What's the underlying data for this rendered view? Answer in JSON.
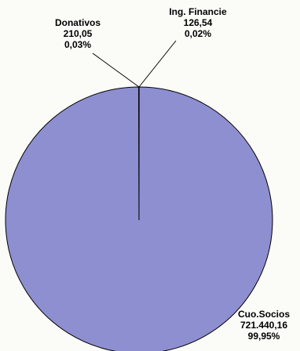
{
  "chart_data": {
    "type": "pie",
    "slices": [
      {
        "label": "Donativos",
        "value_text": "210,05",
        "percent_text": "0,03%",
        "value": 210.05,
        "percent": 0.03
      },
      {
        "label": "Ing. Financie",
        "value_text": "126,54",
        "percent_text": "0,02%",
        "value": 126.54,
        "percent": 0.02
      },
      {
        "label": "Cuo.Socios",
        "value_text": "721.440,16",
        "percent_text": "99,95%",
        "value": 721440.16,
        "percent": 99.95
      }
    ],
    "colors": {
      "main_slice": "#8e8fd1",
      "outline": "#000000"
    }
  }
}
